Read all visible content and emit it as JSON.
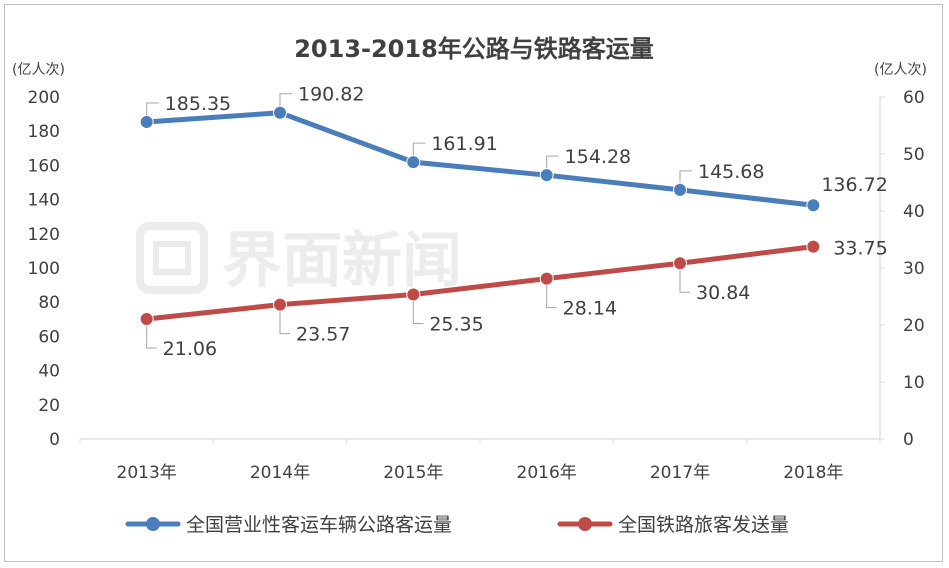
{
  "chart_data": {
    "type": "line",
    "title": "2013-2018年公路与铁路客运量",
    "categories": [
      "2013年",
      "2014年",
      "2015年",
      "2016年",
      "2017年",
      "2018年"
    ],
    "y_left": {
      "unit_label": "(亿人次)",
      "ticks": [
        0,
        20,
        40,
        60,
        80,
        100,
        120,
        140,
        160,
        180,
        200
      ],
      "range": [
        0,
        200
      ]
    },
    "y_right": {
      "unit_label": "(亿人次)",
      "ticks": [
        0,
        10,
        20,
        30,
        40,
        50,
        60
      ],
      "range": [
        0,
        60
      ]
    },
    "series": [
      {
        "name": "全国营业性客运车辆公路客运量",
        "axis": "left",
        "color": "#4a7ebb",
        "values": [
          185.35,
          190.82,
          161.91,
          154.28,
          145.68,
          136.72
        ],
        "labels": [
          "185.35",
          "190.82",
          "161.91",
          "154.28",
          "145.68",
          "136.72"
        ]
      },
      {
        "name": "全国铁路旅客发送量",
        "axis": "right",
        "color": "#be4b48",
        "values": [
          21.06,
          23.57,
          25.35,
          28.14,
          30.84,
          33.75
        ],
        "labels": [
          "21.06",
          "23.57",
          "25.35",
          "28.14",
          "30.84",
          "33.75"
        ]
      }
    ],
    "grid": false,
    "legend_position": "bottom",
    "watermark": "界面新闻"
  }
}
